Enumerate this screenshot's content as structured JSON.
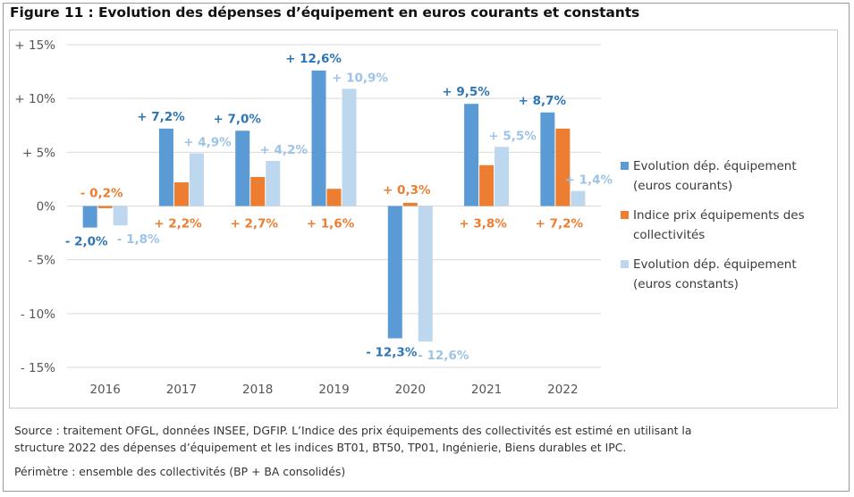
{
  "figure": {
    "title": "Figure 11 : Evolution des dépenses d’équipement en euros courants et constants"
  },
  "chart_data": {
    "type": "bar",
    "categories": [
      "2016",
      "2017",
      "2018",
      "2019",
      "2020",
      "2021",
      "2022"
    ],
    "ylim": [
      -15,
      15
    ],
    "yticks": [
      15,
      10,
      5,
      0,
      -5,
      -10,
      -15
    ],
    "ytick_labels": [
      "+ 15%",
      "+ 10%",
      "+ 5%",
      "0%",
      "- 5%",
      "- 10%",
      "- 15%"
    ],
    "grid": true,
    "legend_position": "right",
    "series": [
      {
        "name": "Evolution dép. équipement (euros courants)",
        "legend_lines": [
          "Evolution dép. équipement",
          "(euros courants)"
        ],
        "color": "#5b9bd5",
        "label_color": "#2e75b6",
        "values": [
          -2.0,
          7.2,
          7.0,
          12.6,
          -12.3,
          9.5,
          8.7
        ],
        "labels": [
          "- 2,0%",
          "+ 7,2%",
          "+ 7,0%",
          "+ 12,6%",
          "- 12,3%",
          "+ 9,5%",
          "+ 8,7%"
        ]
      },
      {
        "name": "Indice prix équipements des collectivités",
        "legend_lines": [
          "Indice prix équipements des",
          "collectivités"
        ],
        "color": "#ed7d31",
        "label_color": "#ed7d31",
        "values": [
          -0.2,
          2.2,
          2.7,
          1.6,
          0.3,
          3.8,
          7.2
        ],
        "labels": [
          "- 0,2%",
          "+ 2,2%",
          "+ 2,7%",
          "+ 1,6%",
          "+ 0,3%",
          "+ 3,8%",
          "+ 7,2%"
        ]
      },
      {
        "name": "Evolution dép. équipement (euros constants)",
        "legend_lines": [
          "Evolution dép. équipement",
          "(euros constants)"
        ],
        "color": "#bdd7ee",
        "label_color": "#9dc3e6",
        "values": [
          -1.8,
          4.9,
          4.2,
          10.9,
          -12.6,
          5.5,
          1.4
        ],
        "labels": [
          "- 1,8%",
          "+ 4,9%",
          "+ 4,2%",
          "+ 10,9%",
          "- 12,6%",
          "+ 5,5%",
          "+ 1,4%"
        ]
      }
    ]
  },
  "footer": {
    "source_line1": "Source : traitement OFGL, données INSEE, DGFIP. L’Indice des prix équipements des collectivités est estimé en utilisant la",
    "source_line2": "structure 2022 des dépenses d’équipement et les indices BT01, BT50, TP01, Ingénierie, Biens durables et IPC.",
    "perimetre": "Périmètre : ensemble des collectivités (BP + BA consolidés)"
  }
}
